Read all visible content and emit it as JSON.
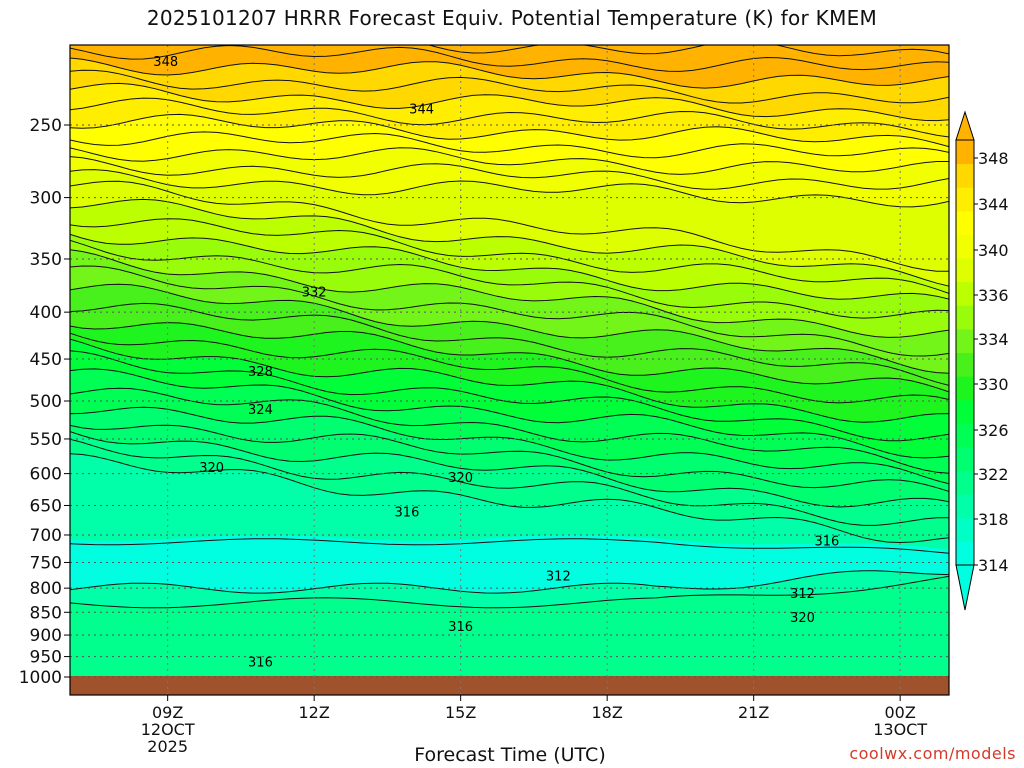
{
  "chart_data": {
    "type": "heatmap",
    "title": "2025101207 HRRR Forecast Equiv. Potential Temperature (K) for KMEM",
    "xlabel": "Forecast Time (UTC)",
    "ylabel": "",
    "x_ticks": [
      {
        "hour": 9,
        "label": "09Z",
        "sub": [
          "12OCT",
          "2025"
        ]
      },
      {
        "hour": 12,
        "label": "12Z",
        "sub": []
      },
      {
        "hour": 15,
        "label": "15Z",
        "sub": []
      },
      {
        "hour": 18,
        "label": "18Z",
        "sub": []
      },
      {
        "hour": 21,
        "label": "21Z",
        "sub": []
      },
      {
        "hour": 24,
        "label": "00Z",
        "sub": [
          "13OCT"
        ]
      }
    ],
    "xlim": [
      7,
      25
    ],
    "y_ticks": [
      250,
      300,
      350,
      400,
      450,
      500,
      550,
      600,
      650,
      700,
      750,
      800,
      850,
      900,
      950,
      1000
    ],
    "ylim": [
      1000,
      200
    ],
    "yscale": "log-pressure",
    "colorbar": {
      "levels": [
        314,
        316,
        318,
        320,
        322,
        324,
        326,
        328,
        330,
        332,
        334,
        336,
        338,
        340,
        342,
        344,
        346,
        348
      ],
      "labels": [
        314,
        318,
        322,
        326,
        330,
        334,
        336,
        340,
        344,
        348
      ],
      "colors": [
        "#00FFE1",
        "#00FFC4",
        "#00FFA8",
        "#00FF8C",
        "#00FF70",
        "#00FF54",
        "#00FF38",
        "#1EF51E",
        "#49F11C",
        "#74F51A",
        "#99FC0A",
        "#BBFF00",
        "#DDFF00",
        "#F2FF00",
        "#FFFF00",
        "#FFEE00",
        "#FFD800",
        "#FFB300"
      ],
      "extend": "both"
    },
    "contour_labels": [
      {
        "value": 348,
        "hour": 8.96,
        "p": 213
      },
      {
        "value": 344,
        "hour": 14.2,
        "p": 240
      },
      {
        "value": 332,
        "hour": 12.0,
        "p": 380
      },
      {
        "value": 328,
        "hour": 10.9,
        "p": 464
      },
      {
        "value": 324,
        "hour": 10.9,
        "p": 510
      },
      {
        "value": 320,
        "hour": 9.9,
        "p": 590
      },
      {
        "value": 320,
        "hour": 15.0,
        "p": 605
      },
      {
        "value": 316,
        "hour": 13.9,
        "p": 660
      },
      {
        "value": 316,
        "hour": 22.5,
        "p": 710
      },
      {
        "value": 312,
        "hour": 17.0,
        "p": 775
      },
      {
        "value": 312,
        "hour": 22.0,
        "p": 810
      },
      {
        "value": 320,
        "hour": 22.0,
        "p": 860
      },
      {
        "value": 316,
        "hour": 15.0,
        "p": 880
      },
      {
        "value": 316,
        "hour": 10.9,
        "p": 962
      }
    ],
    "ground_color": "#A0522D"
  },
  "credit": "coolwx.com/models"
}
